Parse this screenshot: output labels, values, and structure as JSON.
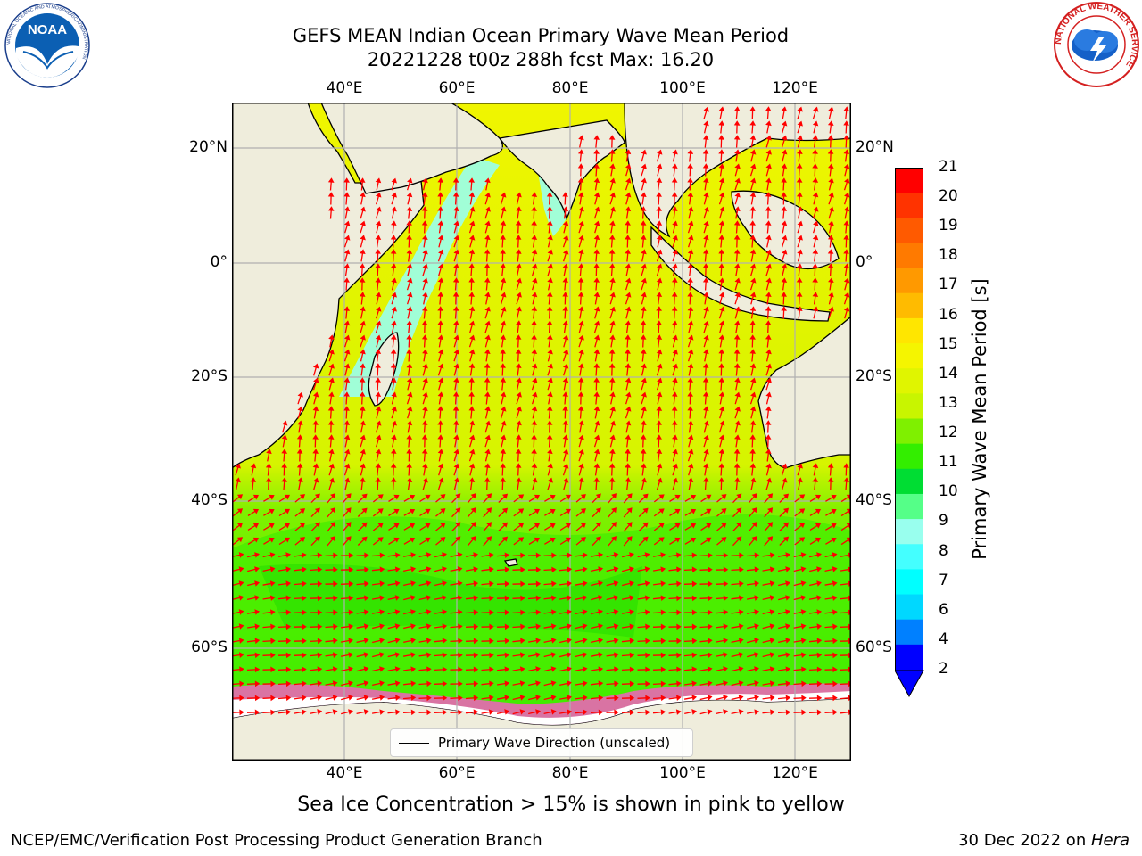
{
  "title": {
    "line1": "GEFS MEAN Indian Ocean Primary Wave Mean Period",
    "line2": "20221228 t00z 288h fcst   Max: 16.20"
  },
  "map": {
    "lon_ticks": [
      "40°E",
      "60°E",
      "80°E",
      "100°E",
      "120°E"
    ],
    "lat_ticks": [
      "20°N",
      "0°",
      "20°S",
      "40°S",
      "60°S"
    ],
    "lon_range": [
      20,
      130
    ],
    "lat_range": [
      -75,
      28
    ],
    "colors": {
      "land": "#efeddc",
      "sea_ice": "#ffffff",
      "coast": "#000000",
      "grid": "#b0b0b0",
      "arrow": "#ff0000"
    },
    "legend_label": "Primary Wave Direction (unscaled)"
  },
  "colorbar": {
    "title": "Primary Wave Mean Period [s]",
    "labels": [
      "21",
      "20",
      "19",
      "18",
      "17",
      "16",
      "15",
      "14",
      "13",
      "12",
      "11",
      "10",
      "9",
      "8",
      "7",
      "6",
      "4",
      "2"
    ],
    "colors": [
      "#ff0000",
      "#ff3300",
      "#ff5a00",
      "#ff7a00",
      "#ff9900",
      "#ffbb00",
      "#ffe600",
      "#f5f500",
      "#e0f500",
      "#c8f500",
      "#7ff000",
      "#33ee00",
      "#00dd33",
      "#55ff88",
      "#99ffee",
      "#44ffff",
      "#00ffff",
      "#00d8ff",
      "#0080ff",
      "#0000ff"
    ]
  },
  "note": "Sea Ice Concentration > 15% is shown in pink to yellow",
  "footer": {
    "left": "NCEP/EMC/Verification Post Processing Product Generation Branch",
    "right_prefix": "30 Dec 2022 on ",
    "right_host": "Hera"
  },
  "logos": {
    "noaa": "NOAA",
    "nws_ring": "NATIONAL WEATHER SERVICE",
    "noaa_ring": "NATIONAL OCEANIC AND ATMOSPHERIC ADMINISTRATION"
  }
}
